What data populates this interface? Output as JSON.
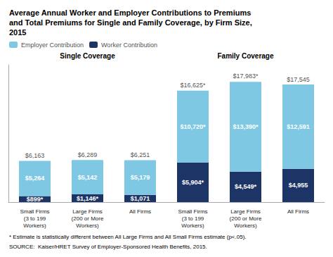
{
  "chart_data": {
    "type": "bar",
    "title": "Average Annual Worker and Employer Contributions to Premiums\nand Total Premiums for Single and Family Coverage, by Firm Size,\n2015",
    "annotations": [
      "Single Coverage",
      "Family Coverage"
    ],
    "categories": [
      "Small Firms\n(3 to 199\nWorkers)",
      "Large Firms\n(200 or More\nWorkers)",
      "All Firms",
      "Small Firms\n(3 to 199\nWorkers)",
      "Large Firms\n(200 or More\nWorkers)",
      "All Firms"
    ],
    "series": [
      {
        "name": "Worker Contribution",
        "color": "#1C3566",
        "values": [
          899,
          1146,
          1071,
          5904,
          4549,
          4955
        ],
        "value_labels": [
          "$899*",
          "$1,146*",
          "$1,071",
          "$5,904*",
          "$4,549*",
          "$4,955"
        ]
      },
      {
        "name": "Employer Contribution",
        "color": "#7EC8E3",
        "values": [
          5264,
          5142,
          5179,
          10720,
          13390,
          12591
        ],
        "value_labels": [
          "$5,264",
          "$5,142",
          "$5,179",
          "$10,720*",
          "$13,390*",
          "$12,591"
        ]
      }
    ],
    "totals": {
      "values": [
        6163,
        6289,
        6251,
        16625,
        17983,
        17545
      ],
      "value_labels": [
        "$6,163",
        "$6,289",
        "$6,251",
        "$16,625*",
        "$17,983*",
        "$17,545"
      ]
    },
    "stacked": true,
    "data_labels": true,
    "ylim": [
      0,
      20500
    ],
    "yticks": [],
    "tick_labels": "x",
    "grid": false,
    "legend": "upper left",
    "footnote": "* Estimate is statistically different between All Large Firms and All Small Firms estimate (p<.05).",
    "source": "SOURCE:  Kaiser/HRET Survey of Employer-Sponsored Health Benefits, 2015."
  }
}
